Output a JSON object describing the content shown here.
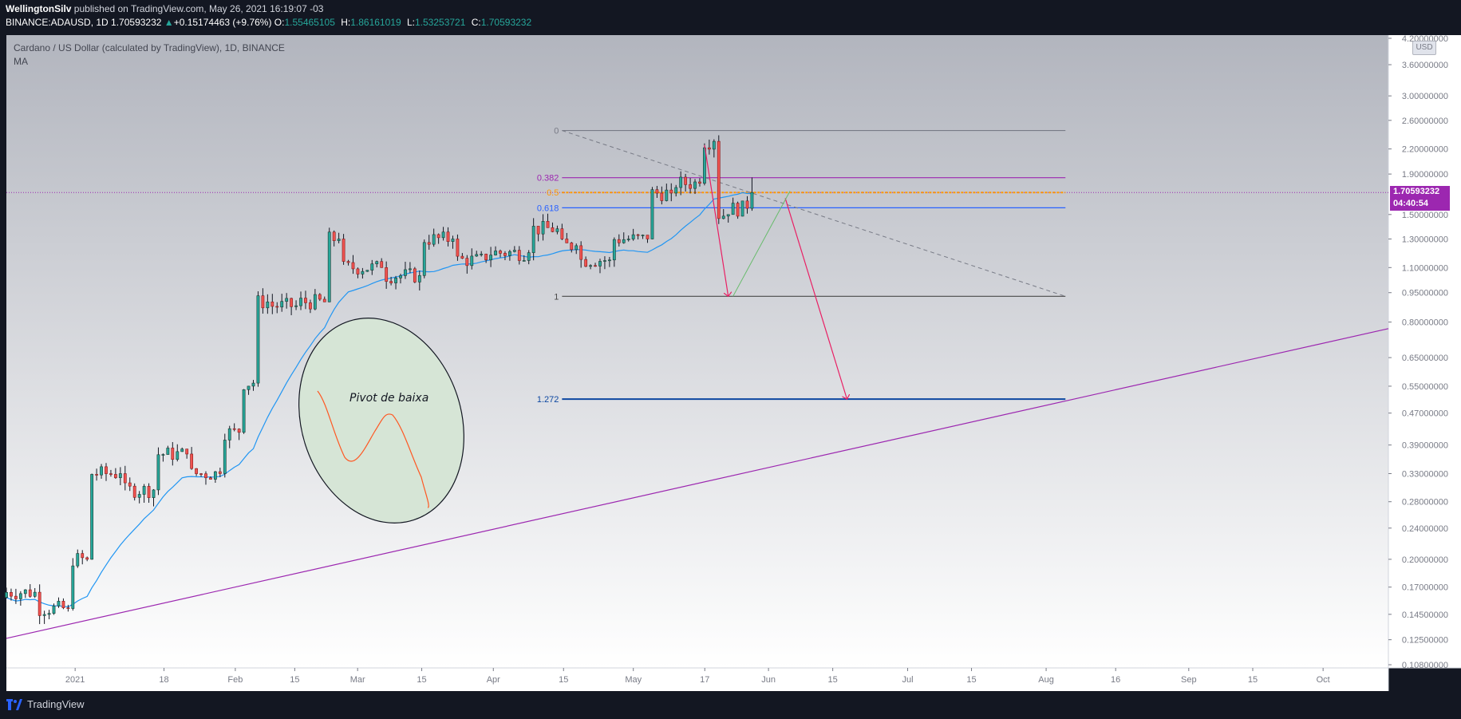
{
  "header": {
    "author": "WellingtonSilv",
    "published_text": "published on TradingView.com, May 26, 2021 16:19:07 -03",
    "symbol": "BINANCE:ADAUSD, 1D",
    "last": "1.70593232",
    "change_arrow": "▲",
    "change": "+0.15174463 (+9.76%)",
    "o_label": "O:",
    "o": "1.55465105",
    "h_label": "H:",
    "h": "1.86161019",
    "l_label": "L:",
    "l": "1.53253721",
    "c_label": "C:",
    "c": "1.70593232"
  },
  "chart": {
    "title": "Cardano / US Dollar (calculated by TradingView), 1D, BINANCE",
    "indicator": "MA",
    "currency": "USD",
    "price_tag_value": "1.70593232",
    "price_tag_timer": "04:40:54",
    "annotation_text": "Pivot de baixa"
  },
  "footer": {
    "brand": "TradingView"
  },
  "colors": {
    "background_top": "#b2b5be",
    "background_bottom": "#ffffff",
    "up_candle": "#26a69a",
    "down_candle": "#ef5350",
    "ma_line": "#2196f3",
    "trendline": "#9c27b0",
    "price_tag": "#9c27b0"
  },
  "chart_data": {
    "type": "candlestick",
    "title": "Cardano / US Dollar (calculated by TradingView), 1D, BINANCE",
    "y_scale": "log",
    "ylim": [
      0.108,
      4.2
    ],
    "y_ticks": [
      "4.20000000",
      "3.60000000",
      "3.00000000",
      "2.60000000",
      "2.20000000",
      "1.90000000",
      "1.50000000",
      "1.30000000",
      "1.10000000",
      "0.95000000",
      "0.80000000",
      "0.65000000",
      "0.55000000",
      "0.47000000",
      "0.39000000",
      "0.33000000",
      "0.28000000",
      "0.24000000",
      "0.20000000",
      "0.17000000",
      "0.14500000",
      "0.12500000",
      "0.10800000"
    ],
    "x_ticks": [
      "2021",
      "18",
      "Feb",
      "15",
      "Mar",
      "15",
      "Apr",
      "15",
      "May",
      "17",
      "Jun",
      "15",
      "Jul",
      "15",
      "Aug",
      "16",
      "Sep",
      "15",
      "Oct"
    ],
    "x_range": [
      "2020-12-20",
      "2021-10-07"
    ],
    "series": [
      {
        "name": "ADAUSD",
        "type": "candlestick",
        "points": [
          [
            "2020-12-20",
            0.16,
            0.17,
            0.155,
            0.165
          ],
          [
            "2020-12-27",
            0.165,
            0.17,
            0.13,
            0.15
          ],
          [
            "2021-01-03",
            0.15,
            0.21,
            0.145,
            0.2
          ],
          [
            "2021-01-07",
            0.2,
            0.36,
            0.2,
            0.33
          ],
          [
            "2021-01-14",
            0.33,
            0.36,
            0.28,
            0.3
          ],
          [
            "2021-01-21",
            0.3,
            0.38,
            0.28,
            0.37
          ],
          [
            "2021-01-28",
            0.37,
            0.38,
            0.3,
            0.33
          ],
          [
            "2021-02-04",
            0.33,
            0.45,
            0.32,
            0.42
          ],
          [
            "2021-02-08",
            0.42,
            0.58,
            0.4,
            0.56
          ],
          [
            "2021-02-11",
            0.56,
            0.95,
            0.55,
            0.9
          ],
          [
            "2021-02-14",
            0.9,
            0.97,
            0.8,
            0.88
          ],
          [
            "2021-02-20",
            0.88,
            1.1,
            0.85,
            0.9
          ],
          [
            "2021-02-26",
            0.9,
            1.43,
            0.88,
            1.3
          ],
          [
            "2021-03-01",
            1.3,
            1.5,
            1.05,
            1.1
          ],
          [
            "2021-03-10",
            1.1,
            1.15,
            0.98,
            1.05
          ],
          [
            "2021-03-18",
            1.05,
            1.48,
            1.0,
            1.3
          ],
          [
            "2021-03-25",
            1.3,
            1.35,
            1.05,
            1.15
          ],
          [
            "2021-04-01",
            1.15,
            1.25,
            1.1,
            1.2
          ],
          [
            "2021-04-10",
            1.2,
            1.4,
            1.15,
            1.38
          ],
          [
            "2021-04-16",
            1.38,
            1.45,
            1.2,
            1.25
          ],
          [
            "2021-04-20",
            1.25,
            1.3,
            0.9,
            1.15
          ],
          [
            "2021-04-27",
            1.15,
            1.35,
            1.05,
            1.3
          ],
          [
            "2021-05-05",
            1.3,
            1.8,
            1.25,
            1.7
          ],
          [
            "2021-05-10",
            1.7,
            1.9,
            1.5,
            1.8
          ],
          [
            "2021-05-16",
            1.8,
            2.45,
            1.75,
            2.3
          ],
          [
            "2021-05-19",
            2.3,
            2.3,
            1.45,
            1.5
          ],
          [
            "2021-05-22",
            1.5,
            1.7,
            1.0,
            1.55
          ],
          [
            "2021-05-26",
            1.555,
            1.862,
            1.533,
            1.706
          ]
        ]
      },
      {
        "name": "MA",
        "type": "line",
        "color": "#2196f3"
      }
    ],
    "fibonacci": {
      "levels": [
        {
          "label": "0",
          "price": 2.45
        },
        {
          "label": "0.382",
          "price": 1.86
        },
        {
          "label": "0.5",
          "price": 1.706
        },
        {
          "label": "0.618",
          "price": 1.56
        },
        {
          "label": "1",
          "price": 0.93
        },
        {
          "label": "1.272",
          "price": 0.51
        }
      ],
      "start": "2021-04-16",
      "end": "2021-07-31"
    },
    "last_price": 1.70593232
  }
}
